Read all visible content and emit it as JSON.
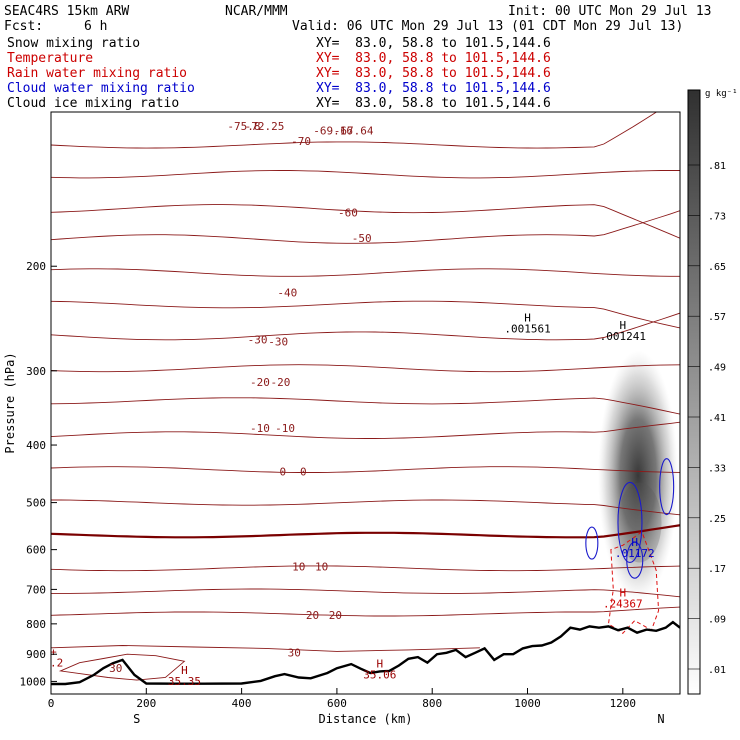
{
  "header": {
    "model": "SEAC4RS 15km ARW",
    "org": "NCAR/MMM",
    "init": "Init: 00 UTC Mon 29 Jul 13",
    "fcst_label": "Fcst:",
    "fcst_value": "6 h",
    "valid": "Valid: 06 UTC Mon 29 Jul 13 (01 CDT Mon 29 Jul 13)"
  },
  "fields": [
    {
      "name": "Snow mixing ratio",
      "xy": "XY=  83.0, 58.8 to 101.5,144.6",
      "color": "#000000"
    },
    {
      "name": "Temperature",
      "xy": "XY=  83.0, 58.8 to 101.5,144.6",
      "color": "#cc0000"
    },
    {
      "name": "Rain water mixing ratio",
      "xy": "XY=  83.0, 58.8 to 101.5,144.6",
      "color": "#cc0000"
    },
    {
      "name": "Cloud water mixing ratio",
      "xy": "XY=  83.0, 58.8 to 101.5,144.6",
      "color": "#0000cc"
    },
    {
      "name": "Cloud ice mixing ratio",
      "xy": "XY=  83.0, 58.8 to 101.5,144.6",
      "color": "#000000"
    }
  ],
  "chart_data": {
    "type": "cross-section contour",
    "xlabel": "Distance (km)",
    "ylabel": "Pressure (hPa)",
    "x_ticks": [
      "0",
      "200",
      "400",
      "600",
      "800",
      "1000",
      "1200"
    ],
    "y_ticks": [
      "200",
      "300",
      "400",
      "500",
      "600",
      "700",
      "800",
      "900",
      "1000"
    ],
    "xlim": [
      0,
      1320
    ],
    "ylim": [
      1050,
      110
    ],
    "y_scale": "log",
    "left_end_label": "S",
    "right_end_label": "N",
    "colorbar": {
      "unit": "g kg⁻¹",
      "labels": [
        ".81",
        ".73",
        ".65",
        ".57",
        ".49",
        ".41",
        ".33",
        ".25",
        ".17",
        ".09",
        ".01"
      ]
    },
    "temperature_labels": [
      "-60",
      "-50",
      "-40",
      "-30",
      "-30",
      "-20",
      "-20",
      "-10",
      "-10",
      "0",
      "0",
      "10",
      "10",
      "20",
      "20",
      "30",
      "30",
      "-70",
      "-67.64",
      "-69.16",
      "-72.25",
      "-75.8"
    ],
    "extrema": [
      {
        "letter": "H",
        "value": ".001561",
        "color": "#000000",
        "x": 1000,
        "p": 248
      },
      {
        "letter": "H",
        "value": ".001241",
        "color": "#000000",
        "x": 1200,
        "p": 255
      },
      {
        "letter": "H",
        "value": ".01172",
        "color": "#0000cc",
        "x": 1225,
        "p": 592
      },
      {
        "letter": "H",
        "value": ".24367",
        "color": "#cc0000",
        "x": 1200,
        "p": 720
      },
      {
        "letter": "H",
        "value": "35.35",
        "color": "#990000",
        "x": 280,
        "p": 972
      },
      {
        "letter": "H",
        "value": "35.06",
        "color": "#990000",
        "x": 690,
        "p": 948
      },
      {
        "letter": "+",
        "value": "5.2",
        "color": "#990000",
        "x": 5,
        "p": 905
      }
    ],
    "terrain": {
      "x": [
        0,
        30,
        60,
        90,
        110,
        130,
        150,
        175,
        200,
        260,
        320,
        400,
        440,
        470,
        490,
        520,
        545,
        580,
        600,
        630,
        650,
        670,
        690,
        710,
        730,
        750,
        770,
        790,
        810,
        830,
        850,
        870,
        890,
        910,
        930,
        950,
        970,
        990,
        1010,
        1030,
        1050,
        1070,
        1090,
        1110,
        1130,
        1150,
        1170,
        1190,
        1210,
        1230,
        1250,
        1270,
        1290,
        1305,
        1320
      ],
      "p": [
        1010,
        1010,
        1003,
        975,
        950,
        932,
        920,
        975,
        1008,
        1009,
        1009,
        1008,
        998,
        980,
        972,
        985,
        988,
        968,
        950,
        935,
        952,
        968,
        962,
        960,
        940,
        916,
        910,
        930,
        900,
        895,
        885,
        910,
        895,
        880,
        920,
        900,
        900,
        880,
        872,
        870,
        860,
        840,
        812,
        818,
        808,
        812,
        808,
        820,
        812,
        828,
        818,
        822,
        812,
        795,
        812
      ]
    }
  }
}
